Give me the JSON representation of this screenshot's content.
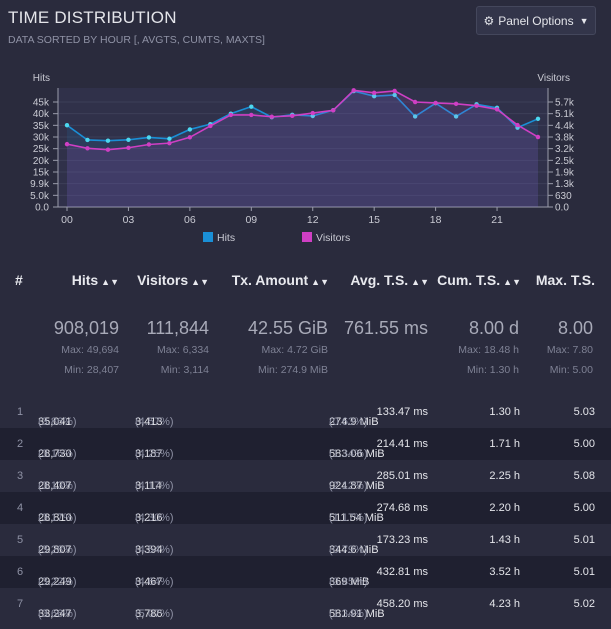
{
  "header": {
    "title": "TIME DISTRIBUTION",
    "subtitle": "DATA SORTED BY HOUR [, AVGTS, CUMTS, MAXTS]",
    "panel_options_label": "Panel Options"
  },
  "chart_data": {
    "type": "line",
    "x": [
      "00",
      "01",
      "02",
      "03",
      "04",
      "05",
      "06",
      "07",
      "08",
      "09",
      "10",
      "11",
      "12",
      "13",
      "14",
      "15",
      "16",
      "17",
      "18",
      "19",
      "20",
      "21",
      "22",
      "23"
    ],
    "xticks": [
      "00",
      "03",
      "06",
      "09",
      "12",
      "15",
      "18",
      "21"
    ],
    "left_axis": {
      "label": "Hits",
      "ticks": [
        "45k",
        "40k",
        "35k",
        "30k",
        "25k",
        "20k",
        "15k",
        "9.9k",
        "5.0k",
        "0.0"
      ],
      "ylim": [
        0,
        49694
      ]
    },
    "right_axis": {
      "label": "Visitors",
      "ticks": [
        "5.7k",
        "5.1k",
        "4.4k",
        "3.8k",
        "3.2k",
        "2.5k",
        "1.9k",
        "1.3k",
        "630",
        "0.0"
      ],
      "ylim": [
        0,
        6334
      ]
    },
    "series": [
      {
        "name": "Hits",
        "color": "#1a8fd6",
        "marker": "#4dd8ef",
        "axis": "left",
        "values": [
          35041,
          28730,
          28407,
          28810,
          29807,
          29249,
          33247,
          35500,
          40000,
          43000,
          38500,
          39500,
          39000,
          41500,
          49694,
          47500,
          48000,
          38800,
          44500,
          38800,
          44000,
          42500,
          34000,
          37800
        ]
      },
      {
        "name": "Visitors",
        "color": "#cf3fc4",
        "marker": "#cf3fc4",
        "axis": "right",
        "values": [
          3413,
          3187,
          3114,
          3216,
          3394,
          3467,
          3786,
          4400,
          5000,
          5000,
          4900,
          4950,
          5100,
          5250,
          6334,
          6200,
          6300,
          5700,
          5650,
          5600,
          5500,
          5300,
          4450,
          3800
        ]
      }
    ],
    "legend": [
      "Hits",
      "Visitors"
    ],
    "legend_position": "bottom-center",
    "grid": true
  },
  "table": {
    "headers": [
      "#",
      "Hits",
      "Visitors",
      "Tx. Amount",
      "Avg. T.S.",
      "Cum. T.S.",
      "Max. T.S."
    ],
    "summary": {
      "hits": {
        "total": "908,019",
        "max": "Max: 49,694",
        "min": "Min: 28,407"
      },
      "visitors": {
        "total": "111,844",
        "max": "Max: 6,334",
        "min": "Min: 3,114"
      },
      "tx": {
        "total": "42.55 GiB",
        "max": "Max: 4.72 GiB",
        "min": "Min: 274.9 MiB"
      },
      "avg": {
        "total": "761.55 ms"
      },
      "cum": {
        "total": "8.00 d",
        "max": "Max: 18.48 h",
        "min": "Min: 1.30 h"
      },
      "maxts": {
        "total": "8.00",
        "max": "Max: 7.80",
        "min": "Min: 5.00"
      }
    },
    "rows": [
      {
        "n": "1",
        "hits": "35,041",
        "hits_pct": "(3.86%)",
        "vis": "3,413",
        "vis_pct": "(4.57%)",
        "tx": "274.9 MiB",
        "tx_pct": "(0.63%)",
        "avg": "133.47 ms",
        "cum": "1.30 h",
        "max": "5.03"
      },
      {
        "n": "2",
        "hits": "28,730",
        "hits_pct": "(3.16%)",
        "vis": "3,187",
        "vis_pct": "(4.26%)",
        "tx": "583.06 MiB",
        "tx_pct": "(1.34%)",
        "avg": "214.41 ms",
        "cum": "1.71 h",
        "max": "5.00"
      },
      {
        "n": "3",
        "hits": "28,407",
        "hits_pct": "(3.13%)",
        "vis": "3,114",
        "vis_pct": "(4.17%)",
        "tx": "924.87 MiB",
        "tx_pct": "(2.12%)",
        "avg": "285.01 ms",
        "cum": "2.25 h",
        "max": "5.08"
      },
      {
        "n": "4",
        "hits": "28,810",
        "hits_pct": "(3.17%)",
        "vis": "3,216",
        "vis_pct": "(4.30%)",
        "tx": "511.54 MiB",
        "tx_pct": "(1.17%)",
        "avg": "274.68 ms",
        "cum": "2.20 h",
        "max": "5.00"
      },
      {
        "n": "5",
        "hits": "29,807",
        "hits_pct": "(3.28%)",
        "vis": "3,394",
        "vis_pct": "(4.54%)",
        "tx": "344.6 MiB",
        "tx_pct": "(0.79%)",
        "avg": "173.23 ms",
        "cum": "1.43 h",
        "max": "5.01"
      },
      {
        "n": "6",
        "hits": "29,249",
        "hits_pct": "(3.22%)",
        "vis": "3,467",
        "vis_pct": "(4.64%)",
        "tx": "369 MiB",
        "tx_pct": "(0.85%)",
        "avg": "432.81 ms",
        "cum": "3.52 h",
        "max": "5.01"
      },
      {
        "n": "7",
        "hits": "33,247",
        "hits_pct": "(3.66%)",
        "vis": "3,786",
        "vis_pct": "(5.07%)",
        "tx": "581.91 MiB",
        "tx_pct": "(1.34%)",
        "avg": "458.20 ms",
        "cum": "4.23 h",
        "max": "5.02"
      }
    ]
  },
  "icons": {
    "panel_options": "gear-icon",
    "dropdown": "caret-down-icon",
    "sort": "sort-icon"
  }
}
